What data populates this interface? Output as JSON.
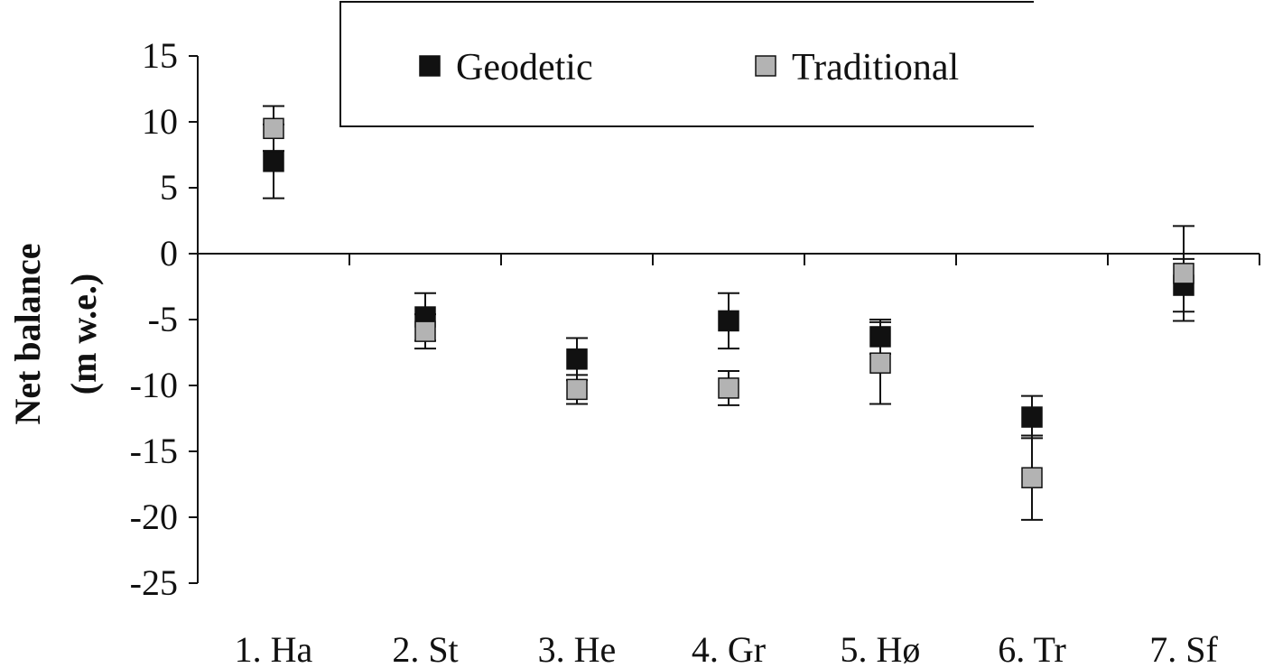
{
  "chart_data": {
    "type": "scatter",
    "title": "",
    "ylabel": [
      "Net balance",
      "(m w.e.)"
    ],
    "xlabel": "",
    "categories": [
      "1. Ha",
      "2. St",
      "3. He",
      "4. Gr",
      "5. Hø",
      "6. Tr",
      "7. Sf"
    ],
    "ylim": [
      -25,
      15
    ],
    "yticks": [
      15,
      10,
      5,
      0,
      -5,
      -10,
      -15,
      -20,
      -25
    ],
    "legend_position": "top",
    "series": [
      {
        "name": "Geodetic",
        "color": "#111111",
        "values": [
          7.0,
          -4.8,
          -8.0,
          -5.1,
          -6.3,
          -12.4,
          -2.4
        ],
        "errors": [
          2.8,
          1.8,
          1.6,
          2.1,
          1.3,
          1.6,
          2.0
        ]
      },
      {
        "name": "Traditional",
        "color": "#b3b3b3",
        "values": [
          9.5,
          -5.9,
          -10.3,
          -10.2,
          -8.3,
          -17.0,
          -1.5
        ],
        "errors": [
          1.7,
          1.3,
          1.1,
          1.3,
          3.1,
          3.2,
          3.6
        ]
      }
    ]
  }
}
